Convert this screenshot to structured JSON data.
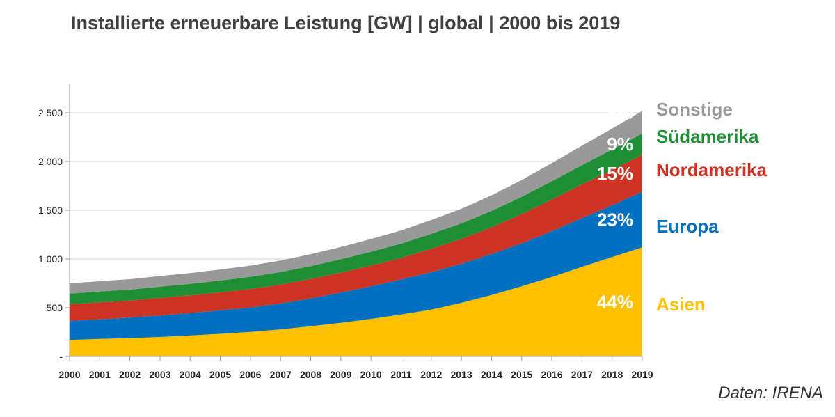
{
  "chart_data": {
    "type": "area",
    "stacked": true,
    "title": "Installierte erneuerbare Leistung [GW] | global | 2000 bis 2019",
    "xlabel": "",
    "ylabel": "",
    "ylim": [
      0,
      2800
    ],
    "yticks": [
      {
        "value": 0,
        "label": "-"
      },
      {
        "value": 500,
        "label": "500"
      },
      {
        "value": 1000,
        "label": "1.000"
      },
      {
        "value": 1500,
        "label": "1.500"
      },
      {
        "value": 2000,
        "label": "2.000"
      },
      {
        "value": 2500,
        "label": "2.500"
      }
    ],
    "categories": [
      "2000",
      "2001",
      "2002",
      "2003",
      "2004",
      "2005",
      "2006",
      "2007",
      "2008",
      "2009",
      "2010",
      "2011",
      "2012",
      "2013",
      "2014",
      "2015",
      "2016",
      "2017",
      "2018",
      "2019"
    ],
    "series": [
      {
        "name": "Asien",
        "color": "#FFC000",
        "share_label": "44%",
        "values": [
          170,
          180,
          188,
          200,
          215,
          232,
          252,
          278,
          310,
          345,
          385,
          430,
          480,
          550,
          630,
          720,
          815,
          920,
          1020,
          1120
        ]
      },
      {
        "name": "Europa",
        "color": "#0070C0",
        "share_label": "23%",
        "values": [
          195,
          200,
          210,
          220,
          230,
          240,
          250,
          265,
          285,
          310,
          335,
          360,
          385,
          400,
          420,
          440,
          470,
          500,
          530,
          570
        ]
      },
      {
        "name": "Nordamerika",
        "color": "#CC3322",
        "share_label": "15%",
        "values": [
          170,
          175,
          175,
          180,
          182,
          185,
          190,
          195,
          200,
          205,
          212,
          220,
          240,
          255,
          275,
          300,
          325,
          345,
          365,
          380
        ]
      },
      {
        "name": "Südamerika",
        "color": "#1E8F35",
        "share_label": "9%",
        "values": [
          110,
          112,
          113,
          116,
          118,
          122,
          125,
          128,
          132,
          137,
          142,
          147,
          153,
          160,
          168,
          178,
          188,
          198,
          208,
          218
        ]
      },
      {
        "name": "Sonstige",
        "color": "#999999",
        "share_label": "9%",
        "values": [
          105,
          105,
          107,
          109,
          111,
          113,
          115,
          118,
          122,
          126,
          131,
          136,
          142,
          150,
          160,
          172,
          186,
          200,
          215,
          232
        ]
      }
    ],
    "legend_position": "right",
    "source_note": "Daten: IRENA",
    "grid": true
  }
}
